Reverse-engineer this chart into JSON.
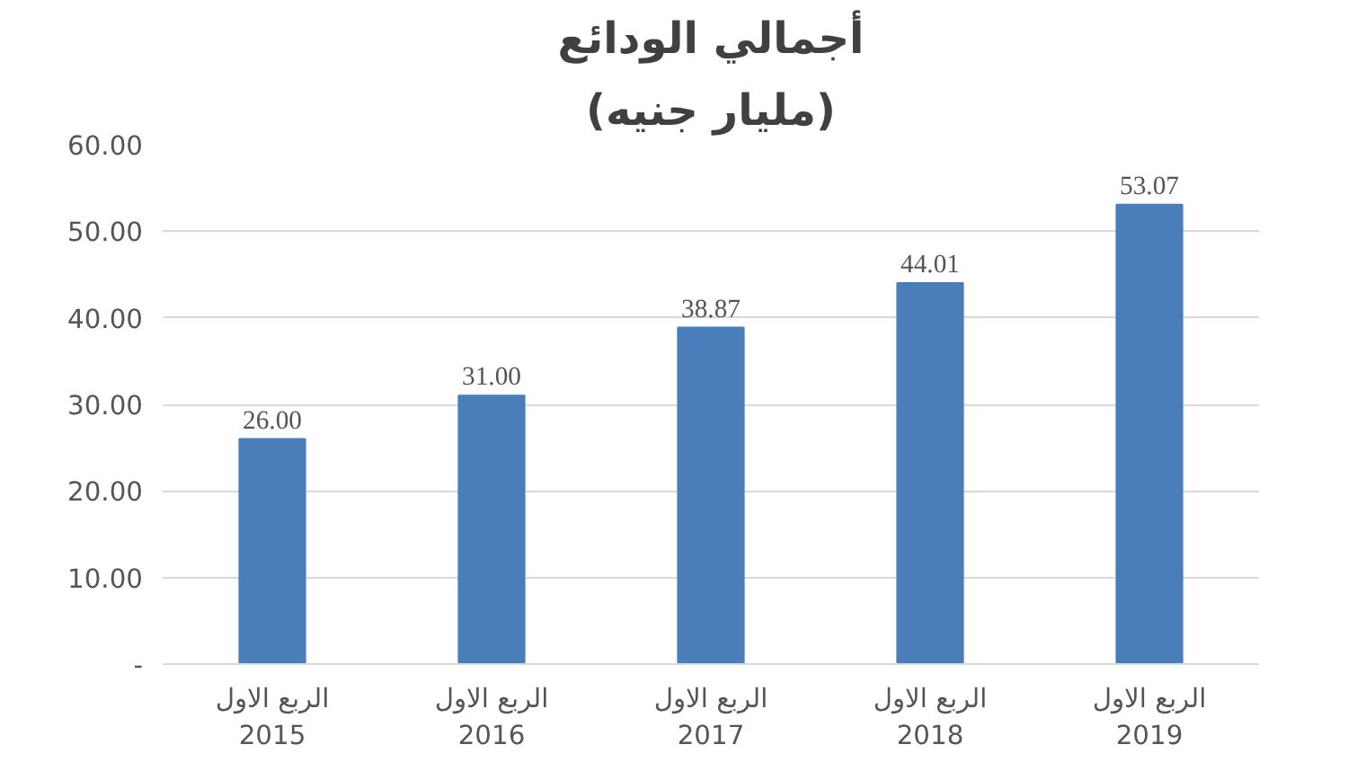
{
  "chart_data": {
    "type": "bar",
    "title": "أجمالي الودائع",
    "subtitle": "(مليار جنيه)",
    "categories": [
      "الربع الاول\n2015",
      "الربع الاول\n2016",
      "الربع الاول\n2017",
      "الربع الاول\n2018",
      "الربع الاول\n2019"
    ],
    "values": [
      26.0,
      31.0,
      38.87,
      44.01,
      53.07
    ],
    "value_labels": [
      "26.00",
      "31.00",
      "38.87",
      "44.01",
      "53.07"
    ],
    "color": "#4a7ebb",
    "ylim": [
      0,
      60
    ],
    "yticks": [
      {
        "value": 0,
        "label": "-"
      },
      {
        "value": 10,
        "label": "10.00"
      },
      {
        "value": 20,
        "label": "20.00"
      },
      {
        "value": 30,
        "label": "30.00"
      },
      {
        "value": 40,
        "label": "40.00"
      },
      {
        "value": 50,
        "label": "50.00"
      },
      {
        "value": 60,
        "label": "60.00"
      }
    ],
    "grid": "y"
  }
}
